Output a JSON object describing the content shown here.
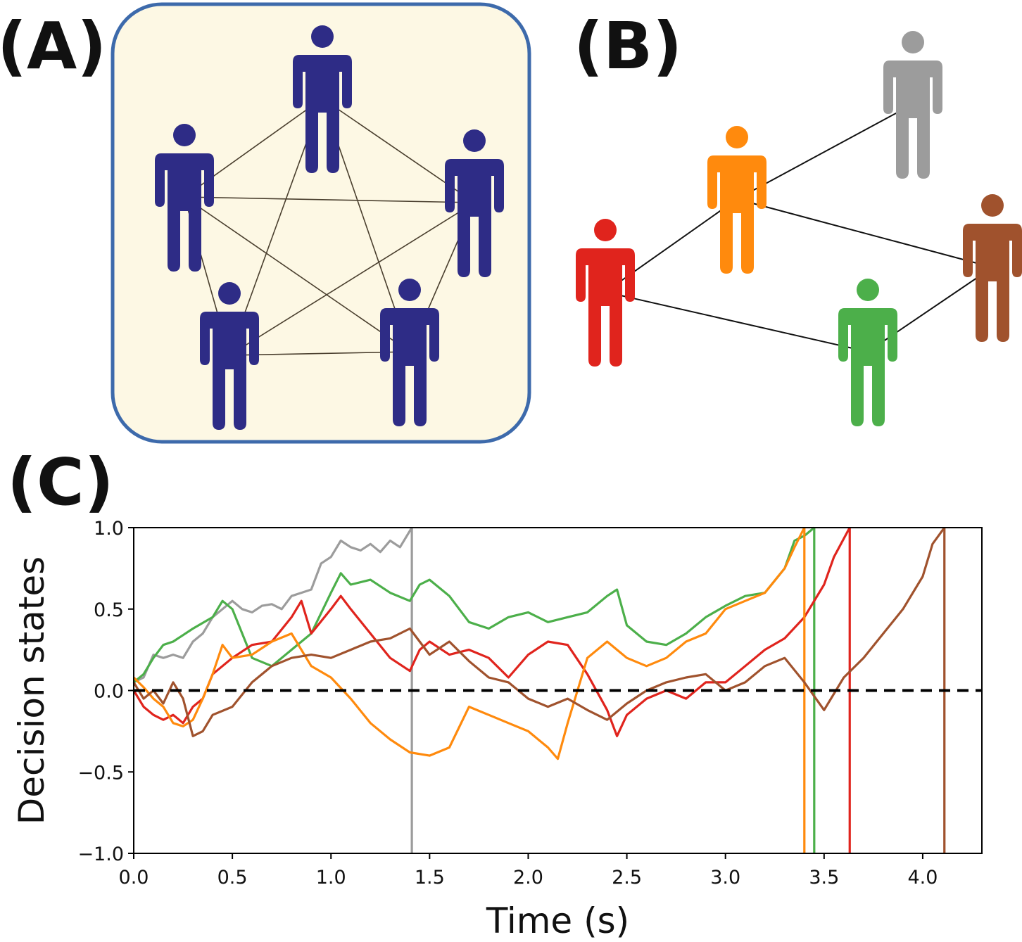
{
  "panels": {
    "a": "(A)",
    "b": "(B)",
    "c": "(C)"
  },
  "colors": {
    "panel_a_person": "#2e2c86",
    "panel_a_bg": "#fdf8e4",
    "panel_a_border": "#3d6aab",
    "red": "#e0241d",
    "orange": "#ff8a0d",
    "gray": "#9c9c9c",
    "brown": "#a0522d",
    "green": "#4caf4a"
  },
  "diagram_a": {
    "people": [
      "person-top",
      "person-left",
      "person-right",
      "person-bottom-left",
      "person-bottom-right"
    ],
    "connectivity": "all-to-all"
  },
  "diagram_b": {
    "people": [
      "red",
      "orange",
      "gray",
      "brown",
      "green"
    ],
    "edges": [
      [
        "red",
        "orange"
      ],
      [
        "orange",
        "gray"
      ],
      [
        "orange",
        "brown"
      ],
      [
        "red",
        "green"
      ],
      [
        "green",
        "brown"
      ]
    ]
  },
  "chart_data": {
    "type": "line",
    "xlabel": "Time (s)",
    "ylabel": "Decision states",
    "xlim": [
      0,
      4.3
    ],
    "ylim": [
      -1.0,
      1.0
    ],
    "xticks": [
      "0.0",
      "0.5",
      "1.0",
      "1.5",
      "2.0",
      "2.5",
      "3.0",
      "3.5",
      "4.0"
    ],
    "yticks": [
      "−1.0",
      "−0.5",
      "0.0",
      "0.5",
      "1.0"
    ],
    "threshold_line": {
      "y": 0.0,
      "style": "dashed",
      "color": "#000000"
    },
    "series": [
      {
        "color": "#9c9c9c",
        "decision_time": 1.41,
        "x": [
          0,
          0.05,
          0.1,
          0.15,
          0.2,
          0.25,
          0.3,
          0.35,
          0.4,
          0.45,
          0.5,
          0.55,
          0.6,
          0.65,
          0.7,
          0.75,
          0.8,
          0.85,
          0.9,
          0.95,
          1.0,
          1.05,
          1.1,
          1.15,
          1.2,
          1.25,
          1.3,
          1.35,
          1.41
        ],
        "y": [
          0.05,
          0.08,
          0.22,
          0.2,
          0.22,
          0.2,
          0.3,
          0.35,
          0.45,
          0.5,
          0.55,
          0.5,
          0.48,
          0.52,
          0.53,
          0.5,
          0.58,
          0.6,
          0.62,
          0.78,
          0.82,
          0.92,
          0.88,
          0.86,
          0.9,
          0.85,
          0.92,
          0.88,
          1.0
        ]
      },
      {
        "color": "#4caf4a",
        "decision_time": 3.45,
        "x": [
          0,
          0.05,
          0.1,
          0.15,
          0.2,
          0.3,
          0.4,
          0.45,
          0.5,
          0.55,
          0.6,
          0.7,
          0.8,
          0.9,
          1.0,
          1.05,
          1.1,
          1.2,
          1.3,
          1.4,
          1.45,
          1.5,
          1.6,
          1.7,
          1.8,
          1.9,
          2.0,
          2.1,
          2.2,
          2.3,
          2.4,
          2.45,
          2.5,
          2.6,
          2.7,
          2.8,
          2.9,
          3.0,
          3.1,
          3.2,
          3.3,
          3.35,
          3.4,
          3.45
        ],
        "y": [
          0.05,
          0.1,
          0.2,
          0.28,
          0.3,
          0.38,
          0.45,
          0.55,
          0.5,
          0.35,
          0.2,
          0.15,
          0.25,
          0.35,
          0.6,
          0.72,
          0.65,
          0.68,
          0.6,
          0.55,
          0.65,
          0.68,
          0.58,
          0.42,
          0.38,
          0.45,
          0.48,
          0.42,
          0.45,
          0.48,
          0.58,
          0.62,
          0.4,
          0.3,
          0.28,
          0.35,
          0.45,
          0.52,
          0.58,
          0.6,
          0.75,
          0.92,
          0.95,
          1.0
        ]
      },
      {
        "color": "#e0241d",
        "decision_time": 3.63,
        "x": [
          0,
          0.05,
          0.1,
          0.15,
          0.2,
          0.25,
          0.3,
          0.35,
          0.4,
          0.5,
          0.6,
          0.7,
          0.8,
          0.85,
          0.9,
          1.0,
          1.05,
          1.1,
          1.2,
          1.3,
          1.4,
          1.45,
          1.5,
          1.6,
          1.7,
          1.8,
          1.9,
          2.0,
          2.1,
          2.2,
          2.3,
          2.4,
          2.45,
          2.5,
          2.6,
          2.7,
          2.8,
          2.9,
          3.0,
          3.1,
          3.2,
          3.3,
          3.4,
          3.5,
          3.55,
          3.63
        ],
        "y": [
          0.0,
          -0.1,
          -0.15,
          -0.18,
          -0.15,
          -0.2,
          -0.1,
          -0.05,
          0.1,
          0.2,
          0.28,
          0.3,
          0.45,
          0.55,
          0.35,
          0.5,
          0.58,
          0.5,
          0.35,
          0.2,
          0.12,
          0.25,
          0.3,
          0.22,
          0.25,
          0.2,
          0.08,
          0.22,
          0.3,
          0.28,
          0.1,
          -0.12,
          -0.28,
          -0.15,
          -0.05,
          0.0,
          -0.05,
          0.05,
          0.05,
          0.15,
          0.25,
          0.32,
          0.45,
          0.65,
          0.82,
          1.0
        ]
      },
      {
        "color": "#ff8a0d",
        "decision_time": 3.4,
        "x": [
          0,
          0.05,
          0.1,
          0.15,
          0.2,
          0.25,
          0.3,
          0.35,
          0.4,
          0.45,
          0.5,
          0.6,
          0.7,
          0.8,
          0.9,
          1.0,
          1.1,
          1.2,
          1.3,
          1.4,
          1.5,
          1.6,
          1.7,
          1.8,
          1.9,
          2.0,
          2.1,
          2.15,
          2.2,
          2.3,
          2.4,
          2.45,
          2.5,
          2.6,
          2.7,
          2.8,
          2.9,
          3.0,
          3.1,
          3.2,
          3.3,
          3.35,
          3.4
        ],
        "y": [
          0.08,
          0.02,
          -0.05,
          -0.1,
          -0.2,
          -0.22,
          -0.18,
          -0.05,
          0.1,
          0.28,
          0.2,
          0.22,
          0.3,
          0.35,
          0.15,
          0.08,
          -0.05,
          -0.2,
          -0.3,
          -0.38,
          -0.4,
          -0.35,
          -0.1,
          -0.15,
          -0.2,
          -0.25,
          -0.35,
          -0.42,
          -0.2,
          0.2,
          0.3,
          0.25,
          0.2,
          0.15,
          0.2,
          0.3,
          0.35,
          0.5,
          0.55,
          0.6,
          0.75,
          0.88,
          1.0
        ]
      },
      {
        "color": "#a0522d",
        "decision_time": 4.11,
        "x": [
          0,
          0.05,
          0.1,
          0.15,
          0.2,
          0.25,
          0.3,
          0.35,
          0.4,
          0.5,
          0.6,
          0.7,
          0.8,
          0.9,
          1.0,
          1.1,
          1.2,
          1.3,
          1.4,
          1.5,
          1.6,
          1.7,
          1.8,
          1.9,
          2.0,
          2.1,
          2.2,
          2.3,
          2.4,
          2.5,
          2.6,
          2.7,
          2.8,
          2.9,
          3.0,
          3.1,
          3.2,
          3.3,
          3.4,
          3.5,
          3.6,
          3.7,
          3.8,
          3.9,
          4.0,
          4.05,
          4.11
        ],
        "y": [
          0.05,
          -0.05,
          0.0,
          -0.08,
          0.05,
          -0.05,
          -0.28,
          -0.25,
          -0.15,
          -0.1,
          0.05,
          0.15,
          0.2,
          0.22,
          0.2,
          0.25,
          0.3,
          0.32,
          0.38,
          0.22,
          0.3,
          0.18,
          0.08,
          0.05,
          -0.05,
          -0.1,
          -0.05,
          -0.12,
          -0.18,
          -0.08,
          0.0,
          0.05,
          0.08,
          0.1,
          0.0,
          0.05,
          0.15,
          0.2,
          0.05,
          -0.12,
          0.08,
          0.2,
          0.35,
          0.5,
          0.7,
          0.9,
          1.0
        ]
      }
    ]
  }
}
